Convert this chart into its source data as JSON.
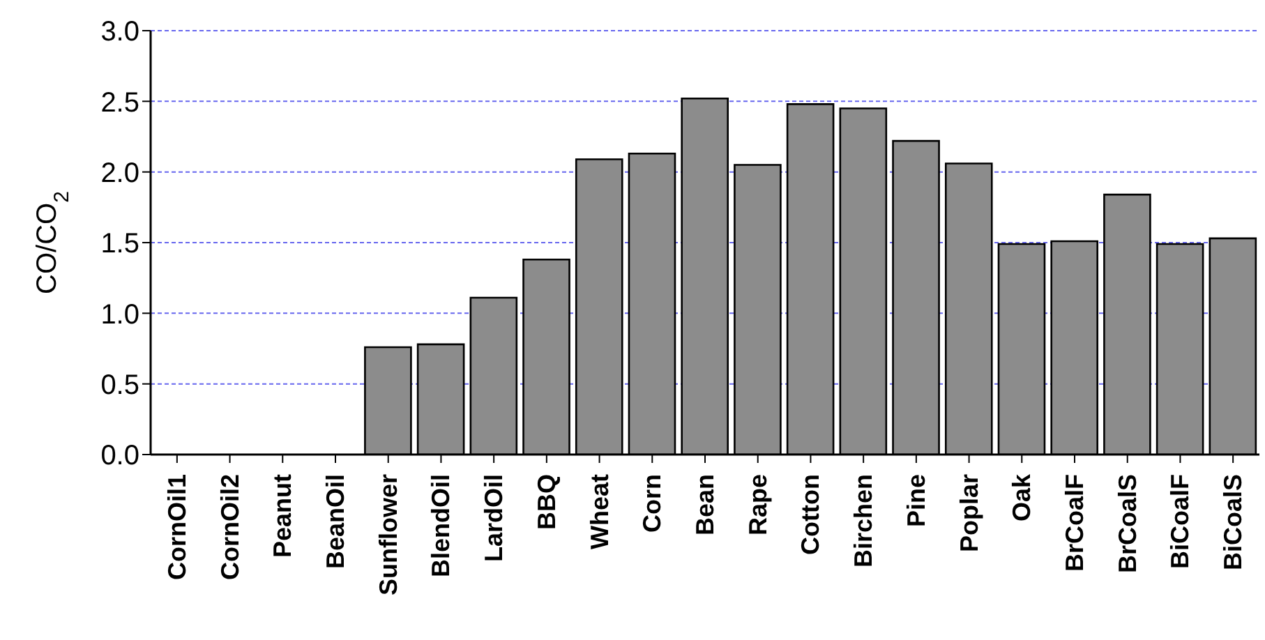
{
  "chart_data": {
    "type": "bar",
    "ylabel": "CO/CO$_{2}$",
    "categories": [
      "CornOil1",
      "CornOil2",
      "Peanut",
      "BeanOil",
      "Sunflower",
      "BlendOil",
      "LardOil",
      "BBQ",
      "Wheat",
      "Corn",
      "Bean",
      "Rape",
      "Cotton",
      "Birchen",
      "Pine",
      "Poplar",
      "Oak",
      "BrCoalF",
      "BrCoalS",
      "BiCoalF",
      "BiCoalS"
    ],
    "values": [
      null,
      null,
      null,
      null,
      0.76,
      0.78,
      1.11,
      1.38,
      2.09,
      2.13,
      2.52,
      2.05,
      2.48,
      2.45,
      2.22,
      2.06,
      1.49,
      1.51,
      1.84,
      1.49,
      1.53
    ],
    "color": "#8c8c8c",
    "ylim": [
      0,
      3
    ],
    "yticks": [
      {
        "value": 0,
        "label": "0.0"
      },
      {
        "value": 0.5,
        "label": "0.5"
      },
      {
        "value": 1,
        "label": "1.0"
      },
      {
        "value": 1.5,
        "label": "1.5"
      },
      {
        "value": 2,
        "label": "2.0"
      },
      {
        "value": 2.5,
        "label": "2.5"
      },
      {
        "value": 3,
        "label": "3.0"
      }
    ],
    "grid": "y",
    "legend": false
  }
}
